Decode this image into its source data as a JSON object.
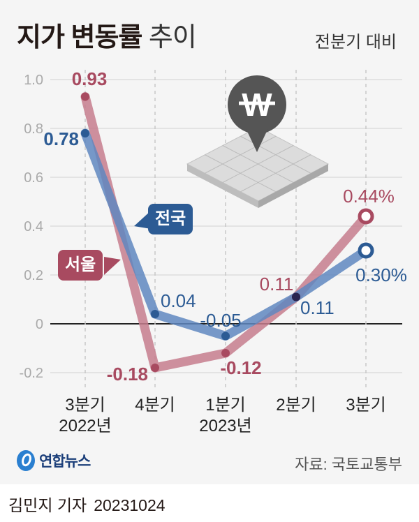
{
  "header": {
    "title_bold": "지가 변동률",
    "title_light": "추이",
    "subtitle": "전분기 대비"
  },
  "legend": {
    "national": "전국",
    "seoul": "서울"
  },
  "colors": {
    "national_dot": "#2c5b94",
    "national_line": "#5f87bf",
    "seoul_dot": "#a84a60",
    "seoul_line": "#c57c8d",
    "background": "#f5f5f5"
  },
  "axis": {
    "y_ticks": [
      "1.0",
      "0.8",
      "0.6",
      "0.4",
      "0.2",
      "0",
      "-0.2"
    ],
    "x_labels": [
      {
        "line1": "3분기",
        "line2": "2022년"
      },
      {
        "line1": "4분기",
        "line2": ""
      },
      {
        "line1": "1분기",
        "line2": "2023년"
      },
      {
        "line1": "2분기",
        "line2": ""
      },
      {
        "line1": "3분기",
        "line2": ""
      }
    ]
  },
  "data_labels": {
    "national": [
      "0.78",
      "0.04",
      "-0.05",
      "0.11",
      "0.30%"
    ],
    "seoul": [
      "0.93",
      "-0.18",
      "-0.12",
      "0.11",
      "0.44%"
    ]
  },
  "footer": {
    "logo_text": "연합뉴스",
    "source": "자료: 국토교통부",
    "reporter": "김민지 기자",
    "date": "20231024"
  },
  "chart_data": {
    "type": "line",
    "title": "지가 변동률 추이",
    "subtitle": "전분기 대비",
    "categories": [
      "3분기 2022년",
      "4분기",
      "1분기 2023년",
      "2분기",
      "3분기"
    ],
    "series": [
      {
        "name": "전국",
        "values": [
          0.78,
          0.04,
          -0.05,
          0.11,
          0.3
        ]
      },
      {
        "name": "서울",
        "values": [
          0.93,
          -0.18,
          -0.12,
          0.11,
          0.44
        ]
      }
    ],
    "xlabel": "",
    "ylabel": "",
    "ylim": [
      -0.2,
      1.0
    ],
    "y_ticks": [
      -0.2,
      0,
      0.2,
      0.4,
      0.6,
      0.8,
      1.0
    ],
    "grid": true,
    "unit": "%",
    "source": "국토교통부"
  }
}
